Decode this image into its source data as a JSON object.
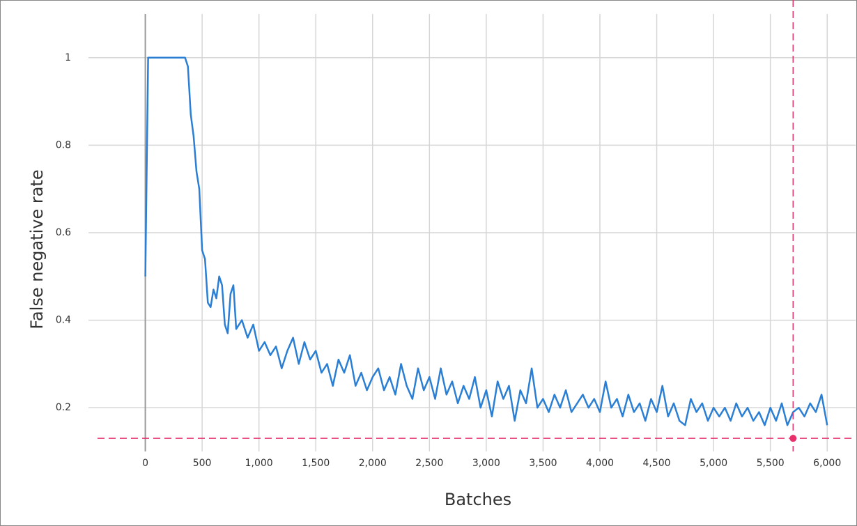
{
  "chart_data": {
    "type": "line",
    "x_label": "Batches",
    "y_label": "False negative rate",
    "color": "#2a7fd4",
    "x": [
      0,
      25,
      50,
      100,
      150,
      200,
      250,
      300,
      350,
      375,
      400,
      425,
      450,
      475,
      500,
      525,
      550,
      575,
      600,
      625,
      650,
      675,
      700,
      725,
      750,
      775,
      800,
      850,
      900,
      950,
      1000,
      1050,
      1100,
      1150,
      1200,
      1250,
      1300,
      1350,
      1400,
      1450,
      1500,
      1550,
      1600,
      1650,
      1700,
      1750,
      1800,
      1850,
      1900,
      1950,
      2000,
      2050,
      2100,
      2150,
      2200,
      2250,
      2300,
      2350,
      2400,
      2450,
      2500,
      2550,
      2600,
      2650,
      2700,
      2750,
      2800,
      2850,
      2900,
      2950,
      3000,
      3050,
      3100,
      3150,
      3200,
      3250,
      3300,
      3350,
      3400,
      3450,
      3500,
      3550,
      3600,
      3650,
      3700,
      3750,
      3800,
      3850,
      3900,
      3950,
      4000,
      4050,
      4100,
      4150,
      4200,
      4250,
      4300,
      4350,
      4400,
      4450,
      4500,
      4550,
      4600,
      4650,
      4700,
      4750,
      4800,
      4850,
      4900,
      4950,
      5000,
      5050,
      5100,
      5150,
      5200,
      5250,
      5300,
      5350,
      5400,
      5450,
      5500,
      5550,
      5600,
      5650,
      5700,
      5750,
      5800,
      5850,
      5900,
      5950,
      6000
    ],
    "values": [
      0.5,
      1,
      1,
      1,
      1,
      1,
      1,
      1,
      1,
      0.98,
      0.87,
      0.82,
      0.74,
      0.7,
      0.56,
      0.54,
      0.44,
      0.43,
      0.47,
      0.45,
      0.5,
      0.48,
      0.39,
      0.37,
      0.46,
      0.48,
      0.38,
      0.4,
      0.36,
      0.39,
      0.33,
      0.35,
      0.32,
      0.34,
      0.29,
      0.33,
      0.36,
      0.3,
      0.35,
      0.31,
      0.33,
      0.28,
      0.3,
      0.25,
      0.31,
      0.28,
      0.32,
      0.25,
      0.28,
      0.24,
      0.27,
      0.29,
      0.24,
      0.27,
      0.23,
      0.3,
      0.25,
      0.22,
      0.29,
      0.24,
      0.27,
      0.22,
      0.29,
      0.23,
      0.26,
      0.21,
      0.25,
      0.22,
      0.27,
      0.2,
      0.24,
      0.18,
      0.26,
      0.22,
      0.25,
      0.17,
      0.24,
      0.21,
      0.29,
      0.2,
      0.22,
      0.19,
      0.23,
      0.2,
      0.24,
      0.19,
      0.21,
      0.23,
      0.2,
      0.22,
      0.19,
      0.26,
      0.2,
      0.22,
      0.18,
      0.23,
      0.19,
      0.21,
      0.17,
      0.22,
      0.19,
      0.25,
      0.18,
      0.21,
      0.17,
      0.16,
      0.22,
      0.19,
      0.21,
      0.17,
      0.2,
      0.18,
      0.2,
      0.17,
      0.21,
      0.18,
      0.2,
      0.17,
      0.19,
      0.16,
      0.2,
      0.17,
      0.21,
      0.16,
      0.19,
      0.2,
      0.18,
      0.21,
      0.19,
      0.23,
      0.16
    ],
    "xlim": [
      -500,
      6250
    ],
    "ylim": [
      0.1,
      1.1
    ],
    "xticks": [
      0,
      500,
      {
        "value": 1000,
        "label": "1,000"
      },
      {
        "value": 1500,
        "label": "1,500"
      },
      {
        "value": 2000,
        "label": "2,000"
      },
      {
        "value": 2500,
        "label": "2,500"
      },
      {
        "value": 3000,
        "label": "3,000"
      },
      {
        "value": 3500,
        "label": "3,500"
      },
      {
        "value": 4000,
        "label": "4,000"
      },
      {
        "value": 4500,
        "label": "4,500"
      },
      {
        "value": 5000,
        "label": "5,000"
      },
      {
        "value": 5500,
        "label": "5,500"
      },
      {
        "value": 6000,
        "label": "6,000"
      }
    ],
    "yticks": [
      0.2,
      0.4,
      0.6,
      0.8,
      1
    ],
    "grid": true,
    "reference": {
      "x": 5700,
      "y": 0.13,
      "color": "#e8306b"
    }
  }
}
